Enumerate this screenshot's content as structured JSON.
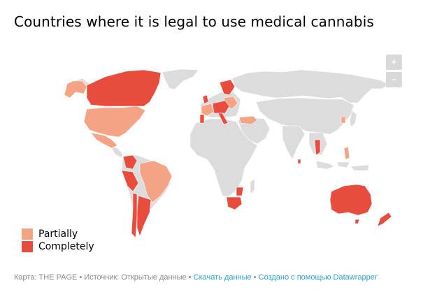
{
  "title": "Countries where it is legal to use medical cannabis",
  "zoom": {
    "in_label": "+",
    "out_label": "–"
  },
  "legend": [
    {
      "label": "Partially",
      "color": "#f5a385"
    },
    {
      "label": "Completely",
      "color": "#e84c3d"
    }
  ],
  "colors": {
    "land": "#dcdcdc",
    "partial": "#f5a385",
    "complete": "#e84c3d",
    "border": "#ffffff"
  },
  "footer": {
    "map_credit": "Карта: THE PAGE",
    "sep1": " • ",
    "source": "Источник: Открытые данные",
    "sep2": " • ",
    "download": "Скачать данные",
    "sep3": " • ",
    "made_with": "Создано с помощью Datawrapper"
  }
}
